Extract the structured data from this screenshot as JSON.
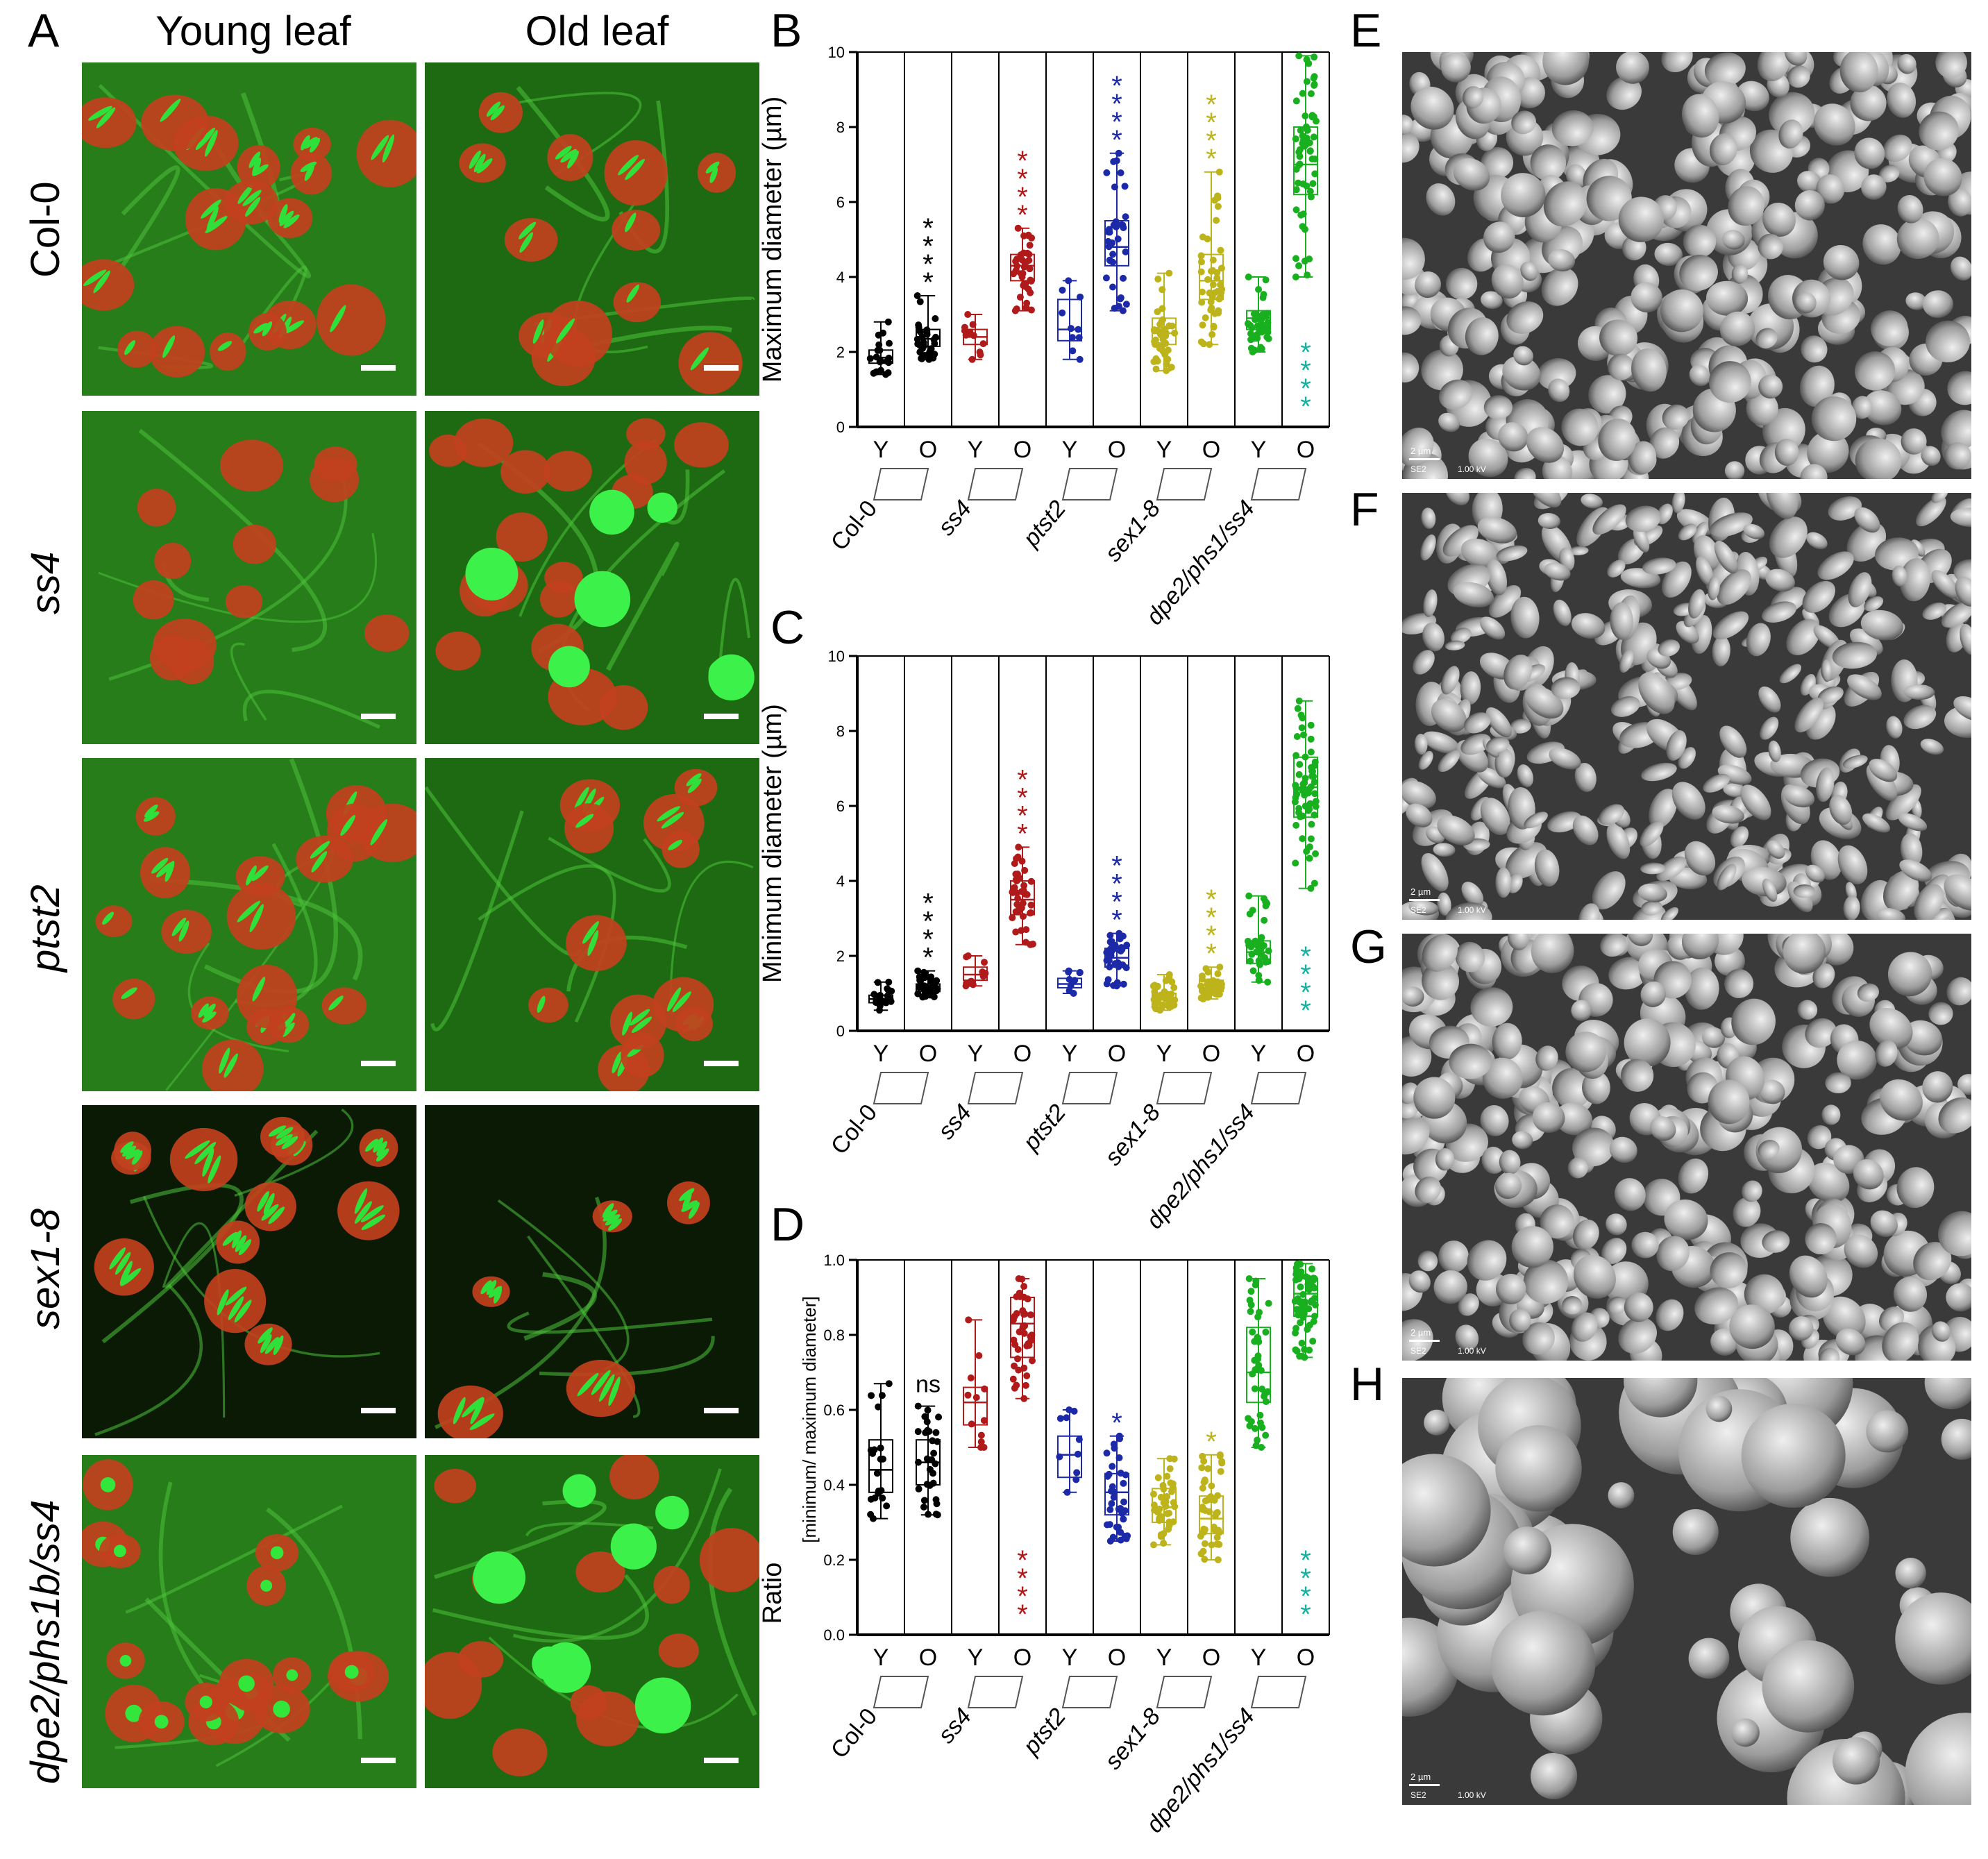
{
  "panel_letters": {
    "A": "A",
    "B": "B",
    "C": "C",
    "D": "D",
    "E": "E",
    "F": "F",
    "G": "G",
    "H": "H"
  },
  "columns": [
    "Young leaf",
    "Old leaf"
  ],
  "rows": [
    {
      "label": "Col-0",
      "italic": false,
      "young": "small",
      "old": "small"
    },
    {
      "label": "ss4",
      "italic": true,
      "young": "none",
      "old": "large"
    },
    {
      "label": "ptst2",
      "italic": true,
      "young": "small",
      "old": "small"
    },
    {
      "label": "sex1-8",
      "italic": true,
      "young": "lens",
      "old": "lens"
    },
    {
      "label": "dpe2/phs1b/ss4",
      "italic": true,
      "young": "round",
      "old": "large"
    }
  ],
  "sem_panels": [
    {
      "id": "E",
      "scale_label": "2 µm",
      "detector": "SE2",
      "voltage": "1.00 kV",
      "style": "flat"
    },
    {
      "id": "F",
      "scale_label": "2 µm",
      "detector": "SE2",
      "voltage": "1.00 kV",
      "style": "tilted"
    },
    {
      "id": "G",
      "scale_label": "2 µm",
      "detector": "SE2",
      "voltage": "1.00 kV",
      "style": "flat"
    },
    {
      "id": "H",
      "scale_label": "2 µm",
      "detector": "SE2",
      "voltage": "1.00 kV",
      "style": "spherical"
    }
  ],
  "chart_data": [
    {
      "id": "B",
      "type": "box",
      "ylabel": "Maximum diameter (µm)",
      "ylim": [
        0,
        10
      ],
      "yticks": [
        "0",
        "2",
        "4",
        "6",
        "8",
        "10"
      ],
      "categories": [
        "Y",
        "O",
        "Y",
        "O",
        "Y",
        "O",
        "Y",
        "O",
        "Y",
        "O"
      ],
      "groups": [
        "Col-0",
        "ss4",
        "ptst2",
        "sex1-8",
        "dpe2/phs1/ss4"
      ],
      "colors": [
        "#000000",
        "#000000",
        "#b11a1a",
        "#b11a1a",
        "#1c2aa8",
        "#1c2aa8",
        "#bdb31a",
        "#bdb31a",
        "#18b01f",
        "#18b01f"
      ],
      "boxes": [
        {
          "min": 1.4,
          "q1": 1.7,
          "median": 1.85,
          "q3": 2.05,
          "max": 2.8,
          "n": 20
        },
        {
          "min": 1.8,
          "q1": 2.15,
          "median": 2.35,
          "q3": 2.6,
          "max": 3.5,
          "n": 30
        },
        {
          "min": 1.8,
          "q1": 2.2,
          "median": 2.4,
          "q3": 2.6,
          "max": 3.0,
          "n": 12
        },
        {
          "min": 3.1,
          "q1": 3.9,
          "median": 4.3,
          "q3": 4.6,
          "max": 5.3,
          "n": 40
        },
        {
          "min": 1.8,
          "q1": 2.3,
          "median": 2.6,
          "q3": 3.4,
          "max": 3.9,
          "n": 10
        },
        {
          "min": 3.1,
          "q1": 4.3,
          "median": 4.8,
          "q3": 5.5,
          "max": 7.3,
          "n": 35
        },
        {
          "min": 1.5,
          "q1": 2.2,
          "median": 2.5,
          "q3": 2.9,
          "max": 4.1,
          "n": 40
        },
        {
          "min": 2.2,
          "q1": 3.4,
          "median": 3.9,
          "q3": 4.6,
          "max": 6.8,
          "n": 45
        },
        {
          "min": 2.0,
          "q1": 2.6,
          "median": 2.9,
          "q3": 3.1,
          "max": 4.0,
          "n": 40
        },
        {
          "min": 4.0,
          "q1": 6.2,
          "median": 7.0,
          "q3": 8.0,
          "max": 9.9,
          "n": 60
        }
      ],
      "sig": [
        {
          "index": 1,
          "text": "****",
          "color": "#000000",
          "side": "top"
        },
        {
          "index": 3,
          "text": "****",
          "color": "#b11a1a",
          "side": "top"
        },
        {
          "index": 5,
          "text": "****",
          "color": "#1c2aa8",
          "side": "top"
        },
        {
          "index": 7,
          "text": "****",
          "color": "#bdb31a",
          "side": "top"
        },
        {
          "index": 9,
          "text": "****",
          "color": "#18b0a0",
          "side": "bottom"
        }
      ]
    },
    {
      "id": "C",
      "type": "box",
      "ylabel": "Minimum diameter (µm)",
      "ylim": [
        0,
        10
      ],
      "yticks": [
        "0",
        "2",
        "4",
        "6",
        "8",
        "10"
      ],
      "categories": [
        "Y",
        "O",
        "Y",
        "O",
        "Y",
        "O",
        "Y",
        "O",
        "Y",
        "O"
      ],
      "groups": [
        "Col-0",
        "ss4",
        "ptst2",
        "sex1-8",
        "dpe2/phs1/ss4"
      ],
      "colors": [
        "#000000",
        "#000000",
        "#b11a1a",
        "#b11a1a",
        "#1c2aa8",
        "#1c2aa8",
        "#bdb31a",
        "#bdb31a",
        "#18b01f",
        "#18b01f"
      ],
      "boxes": [
        {
          "min": 0.55,
          "q1": 0.75,
          "median": 0.85,
          "q3": 0.95,
          "max": 1.3,
          "n": 20
        },
        {
          "min": 0.9,
          "q1": 1.05,
          "median": 1.15,
          "q3": 1.25,
          "max": 1.6,
          "n": 30
        },
        {
          "min": 1.2,
          "q1": 1.35,
          "median": 1.5,
          "q3": 1.7,
          "max": 2.0,
          "n": 12
        },
        {
          "min": 2.3,
          "q1": 3.1,
          "median": 3.5,
          "q3": 4.0,
          "max": 4.9,
          "n": 40
        },
        {
          "min": 1.0,
          "q1": 1.15,
          "median": 1.25,
          "q3": 1.4,
          "max": 1.6,
          "n": 10
        },
        {
          "min": 1.2,
          "q1": 1.7,
          "median": 1.95,
          "q3": 2.2,
          "max": 2.6,
          "n": 35
        },
        {
          "min": 0.55,
          "q1": 0.7,
          "median": 0.85,
          "q3": 1.0,
          "max": 1.5,
          "n": 40
        },
        {
          "min": 0.85,
          "q1": 1.05,
          "median": 1.15,
          "q3": 1.35,
          "max": 1.7,
          "n": 45
        },
        {
          "min": 1.3,
          "q1": 1.8,
          "median": 2.1,
          "q3": 2.4,
          "max": 3.6,
          "n": 40
        },
        {
          "min": 3.8,
          "q1": 5.7,
          "median": 6.5,
          "q3": 7.3,
          "max": 8.8,
          "n": 60
        }
      ],
      "sig": [
        {
          "index": 1,
          "text": "****",
          "color": "#000000",
          "side": "top"
        },
        {
          "index": 3,
          "text": "****",
          "color": "#b11a1a",
          "side": "top"
        },
        {
          "index": 5,
          "text": "****",
          "color": "#1c2aa8",
          "side": "top"
        },
        {
          "index": 7,
          "text": "****",
          "color": "#bdb31a",
          "side": "top"
        },
        {
          "index": 9,
          "text": "****",
          "color": "#18b0a0",
          "side": "bottom"
        }
      ]
    },
    {
      "id": "D",
      "type": "box",
      "ylabel": "Ratio",
      "ylabel_sub": "[minimum/ maximum diameter]",
      "ylim": [
        0,
        1
      ],
      "yticks": [
        "0.0",
        "0.2",
        "0.4",
        "0.6",
        "0.8",
        "1.0"
      ],
      "categories": [
        "Y",
        "O",
        "Y",
        "O",
        "Y",
        "O",
        "Y",
        "O",
        "Y",
        "O"
      ],
      "groups": [
        "Col-0",
        "ss4",
        "ptst2",
        "sex1-8",
        "dpe2/phs1/ss4"
      ],
      "colors": [
        "#000000",
        "#000000",
        "#b11a1a",
        "#b11a1a",
        "#1c2aa8",
        "#1c2aa8",
        "#bdb31a",
        "#bdb31a",
        "#18b01f",
        "#18b01f"
      ],
      "boxes": [
        {
          "min": 0.31,
          "q1": 0.38,
          "median": 0.44,
          "q3": 0.52,
          "max": 0.67,
          "n": 20
        },
        {
          "min": 0.32,
          "q1": 0.4,
          "median": 0.46,
          "q3": 0.52,
          "max": 0.61,
          "n": 30
        },
        {
          "min": 0.5,
          "q1": 0.56,
          "median": 0.62,
          "q3": 0.66,
          "max": 0.84,
          "n": 12
        },
        {
          "min": 0.63,
          "q1": 0.74,
          "median": 0.83,
          "q3": 0.9,
          "max": 0.95,
          "n": 40
        },
        {
          "min": 0.38,
          "q1": 0.42,
          "median": 0.48,
          "q3": 0.53,
          "max": 0.6,
          "n": 10
        },
        {
          "min": 0.25,
          "q1": 0.32,
          "median": 0.38,
          "q3": 0.43,
          "max": 0.53,
          "n": 35
        },
        {
          "min": 0.24,
          "q1": 0.3,
          "median": 0.34,
          "q3": 0.39,
          "max": 0.47,
          "n": 40
        },
        {
          "min": 0.2,
          "q1": 0.27,
          "median": 0.31,
          "q3": 0.37,
          "max": 0.48,
          "n": 45
        },
        {
          "min": 0.5,
          "q1": 0.62,
          "median": 0.7,
          "q3": 0.82,
          "max": 0.95,
          "n": 40
        },
        {
          "min": 0.74,
          "q1": 0.85,
          "median": 0.91,
          "q3": 0.95,
          "max": 0.99,
          "n": 60
        }
      ],
      "sig": [
        {
          "index": 1,
          "text": "ns",
          "color": "#000000",
          "side": "top"
        },
        {
          "index": 3,
          "text": "****",
          "color": "#b11a1a",
          "side": "bottom"
        },
        {
          "index": 5,
          "text": "*",
          "color": "#1c2aa8",
          "side": "top"
        },
        {
          "index": 7,
          "text": "*",
          "color": "#bdb31a",
          "side": "top"
        },
        {
          "index": 9,
          "text": "****",
          "color": "#18b0a0",
          "side": "bottom"
        }
      ]
    }
  ]
}
